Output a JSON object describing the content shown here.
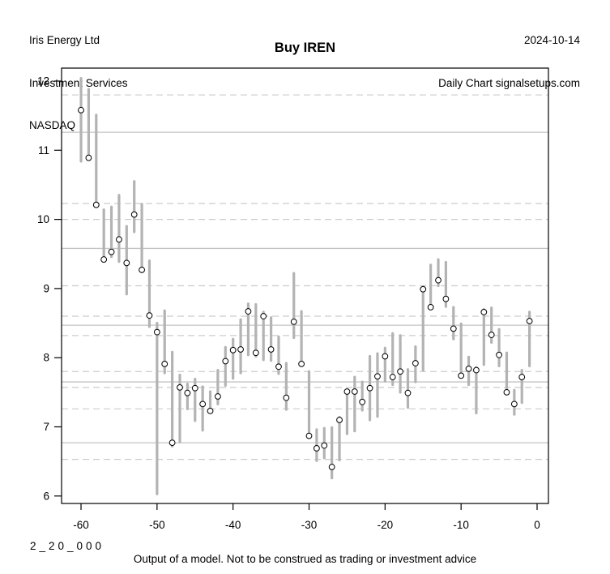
{
  "header": {
    "company": "Iris Energy Ltd",
    "subtitle": "Investment Services",
    "exchange": "NASDAQ",
    "date": "2024-10-14",
    "chart_type": "Daily Chart signalsetups.com"
  },
  "title": "Buy IREN",
  "footer": {
    "model_id": "2_20_000",
    "disclaimer": "Output of a model. Not to be construed as trading or investment advice"
  },
  "chart_data": {
    "type": "bar",
    "subtype": "high-low-close-range-bars",
    "xlabel": "",
    "ylabel": "",
    "x_ticks": [
      -60,
      -50,
      -40,
      -30,
      -20,
      -10,
      0
    ],
    "y_ticks": [
      6,
      7,
      8,
      9,
      10,
      11,
      12
    ],
    "xlim": [
      -62.5,
      1.5
    ],
    "ylim": [
      5.88,
      12.2
    ],
    "grid_solid_levels": [
      11.26,
      9.58,
      8.47,
      7.65,
      6.77
    ],
    "grid_dashed_levels": [
      11.8,
      10.23,
      10.0,
      9.04,
      8.6,
      8.32,
      7.8,
      7.57,
      7.26,
      6.53
    ],
    "colors": {
      "bar": "#b3b3b3",
      "grid_solid": "#c4c4c4",
      "grid_dashed": "#cccccc",
      "axis": "#000000",
      "marker_fill": "#ffffff",
      "marker_stroke": "#000000"
    },
    "series_name": "IREN daily range (high, low) with close marker",
    "bars_hlc": [
      [
        -60,
        12.04,
        10.84,
        11.58
      ],
      [
        -59,
        11.88,
        10.88,
        10.89
      ],
      [
        -58,
        11.51,
        10.2,
        10.21
      ],
      [
        -57,
        10.14,
        9.4,
        9.42
      ],
      [
        -56,
        10.18,
        9.46,
        9.53
      ],
      [
        -55,
        10.35,
        9.39,
        9.71
      ],
      [
        -54,
        9.9,
        8.92,
        9.37
      ],
      [
        -53,
        10.55,
        9.82,
        10.07
      ],
      [
        -52,
        10.22,
        9.24,
        9.27
      ],
      [
        -51,
        9.4,
        8.45,
        8.61
      ],
      [
        -50,
        8.5,
        6.03,
        8.37
      ],
      [
        -49,
        8.68,
        7.78,
        7.91
      ],
      [
        -48,
        8.08,
        6.72,
        6.77
      ],
      [
        -47,
        7.75,
        6.78,
        7.57
      ],
      [
        -46,
        7.62,
        7.26,
        7.49
      ],
      [
        -45,
        7.69,
        7.09,
        7.56
      ],
      [
        -44,
        7.58,
        6.95,
        7.33
      ],
      [
        -43,
        7.51,
        7.22,
        7.23
      ],
      [
        -42,
        7.82,
        7.33,
        7.44
      ],
      [
        -41,
        8.15,
        7.6,
        7.95
      ],
      [
        -40,
        8.27,
        7.7,
        8.11
      ],
      [
        -39,
        8.55,
        7.78,
        8.12
      ],
      [
        -38,
        8.78,
        8.04,
        8.67
      ],
      [
        -37,
        8.77,
        8.02,
        8.07
      ],
      [
        -36,
        8.66,
        7.97,
        8.6
      ],
      [
        -35,
        8.58,
        7.96,
        8.12
      ],
      [
        -34,
        8.3,
        7.77,
        7.87
      ],
      [
        -33,
        7.92,
        7.25,
        7.42
      ],
      [
        -32,
        9.22,
        8.29,
        8.52
      ],
      [
        -31,
        8.67,
        7.9,
        7.91
      ],
      [
        -30,
        7.8,
        6.85,
        6.87
      ],
      [
        -29,
        6.96,
        6.51,
        6.69
      ],
      [
        -28,
        6.98,
        6.55,
        6.73
      ],
      [
        -27,
        6.99,
        6.26,
        6.42
      ],
      [
        -26,
        7.14,
        6.52,
        7.1
      ],
      [
        -25,
        7.54,
        6.9,
        7.51
      ],
      [
        -24,
        7.72,
        6.94,
        7.51
      ],
      [
        -23,
        7.65,
        7.24,
        7.36
      ],
      [
        -22,
        8.02,
        7.1,
        7.56
      ],
      [
        -21,
        8.06,
        7.15,
        7.73
      ],
      [
        -20,
        8.14,
        7.66,
        8.02
      ],
      [
        -19,
        8.35,
        7.61,
        7.72
      ],
      [
        -18,
        8.32,
        7.5,
        7.8
      ],
      [
        -17,
        7.83,
        7.28,
        7.49
      ],
      [
        -16,
        8.16,
        7.65,
        7.92
      ],
      [
        -15,
        9.03,
        7.82,
        8.99
      ],
      [
        -14,
        9.34,
        8.71,
        8.73
      ],
      [
        -13,
        9.42,
        9.04,
        9.12
      ],
      [
        -12,
        9.38,
        8.74,
        8.85
      ],
      [
        -11,
        8.73,
        8.27,
        8.42
      ],
      [
        -10,
        8.49,
        7.72,
        7.74
      ],
      [
        -9,
        8.01,
        7.61,
        7.84
      ],
      [
        -8,
        7.86,
        7.2,
        7.82
      ],
      [
        -7,
        8.7,
        7.9,
        8.66
      ],
      [
        -6,
        8.72,
        8.22,
        8.33
      ],
      [
        -5,
        8.41,
        7.88,
        8.04
      ],
      [
        -4,
        8.07,
        7.5,
        7.5
      ],
      [
        -3,
        7.53,
        7.18,
        7.33
      ],
      [
        -2,
        7.82,
        7.35,
        7.72
      ],
      [
        -1,
        8.66,
        7.88,
        8.53
      ]
    ]
  }
}
